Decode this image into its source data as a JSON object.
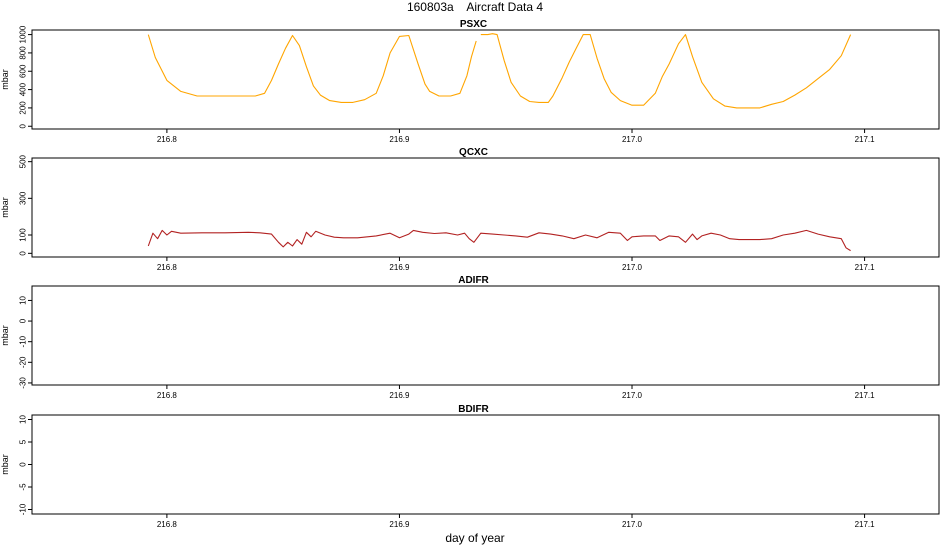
{
  "figure": {
    "title": "160803a    Aircraft Data 4",
    "xlabel": "day of year"
  },
  "chart_data": [
    {
      "type": "line",
      "title": "PSXC",
      "ylabel": "mbar",
      "xlim": [
        216.742,
        217.132
      ],
      "ylim": [
        -30,
        1050
      ],
      "xticks": [
        216.8,
        216.9,
        217.0,
        217.1
      ],
      "xtick_labels": [
        "216.8",
        "216.9",
        "217.0",
        "217.1"
      ],
      "yticks": [
        0,
        200,
        400,
        600,
        800,
        1000
      ],
      "ytick_labels": [
        "0",
        "200",
        "400",
        "600",
        "800",
        "1000"
      ],
      "color": "#ffa500",
      "series": [
        {
          "x": [
            216.792,
            216.795,
            216.8,
            216.806,
            216.813,
            216.82,
            216.83,
            216.838,
            216.842,
            216.845,
            216.848,
            216.851,
            216.854,
            216.857,
            216.86,
            216.863,
            216.866,
            216.87,
            216.875,
            216.88,
            216.885,
            216.89,
            216.893,
            216.896,
            216.9,
            216.904,
            216.908,
            216.911,
            216.913,
            216.917,
            216.922,
            216.926,
            216.929,
            216.931,
            216.933
          ],
          "y": [
            1000,
            750,
            500,
            380,
            330,
            330,
            330,
            330,
            360,
            500,
            680,
            850,
            990,
            880,
            650,
            440,
            340,
            280,
            260,
            260,
            290,
            360,
            550,
            800,
            980,
            990,
            680,
            460,
            380,
            330,
            330,
            360,
            550,
            760,
            930
          ]
        },
        {
          "x": [
            216.935,
            216.938,
            216.94,
            216.942,
            216.945,
            216.948,
            216.952,
            216.956,
            216.96,
            216.964,
            216.966,
            216.97,
            216.973,
            216.976,
            216.979,
            216.982,
            216.985,
            216.988,
            216.991,
            216.995,
            217.0,
            217.005,
            217.01,
            217.013,
            217.016,
            217.02,
            217.023,
            217.026,
            217.03,
            217.035,
            217.04,
            217.045,
            217.05,
            217.055,
            217.06,
            217.065,
            217.07,
            217.075,
            217.08,
            217.085,
            217.09,
            217.094
          ],
          "y": [
            1000,
            1000,
            1010,
            1000,
            720,
            480,
            330,
            270,
            260,
            260,
            330,
            530,
            700,
            850,
            1000,
            1000,
            740,
            520,
            370,
            280,
            230,
            230,
            360,
            540,
            680,
            900,
            1000,
            760,
            480,
            300,
            220,
            200,
            200,
            200,
            240,
            270,
            340,
            420,
            520,
            620,
            770,
            1000
          ]
        }
      ]
    },
    {
      "type": "line",
      "title": "QCXC",
      "ylabel": "mbar",
      "xlim": [
        216.742,
        217.132
      ],
      "ylim": [
        -20,
        520
      ],
      "xticks": [
        216.8,
        216.9,
        217.0,
        217.1
      ],
      "xtick_labels": [
        "216.8",
        "216.9",
        "217.0",
        "217.1"
      ],
      "yticks": [
        0,
        100,
        300,
        500
      ],
      "ytick_labels": [
        "0",
        "100",
        "300",
        "500"
      ],
      "color": "#b22222",
      "series": [
        {
          "x": [
            216.792,
            216.794,
            216.796,
            216.798,
            216.8,
            216.802,
            216.806,
            216.815,
            216.825,
            216.835,
            216.84,
            216.845,
            216.848,
            216.85,
            216.852,
            216.854,
            216.856,
            216.858,
            216.86,
            216.862,
            216.864,
            216.868,
            216.872,
            216.876,
            216.882,
            216.89,
            216.896,
            216.9,
            216.904,
            216.906,
            216.91,
            216.915,
            216.92,
            216.925,
            216.928,
            216.93,
            216.932,
            216.935,
            216.94,
            216.945,
            216.95,
            216.955,
            216.96,
            216.965,
            216.97,
            216.975,
            216.98,
            216.985,
            216.99,
            216.995,
            216.998,
            217.0,
            217.005,
            217.01,
            217.012,
            217.016,
            217.02,
            217.023,
            217.026,
            217.028,
            217.03,
            217.034,
            217.038,
            217.042,
            217.046,
            217.05,
            217.055,
            217.06,
            217.065,
            217.07,
            217.075,
            217.08,
            217.085,
            217.09,
            217.092,
            217.094
          ],
          "y": [
            40,
            110,
            80,
            125,
            100,
            120,
            110,
            112,
            112,
            115,
            112,
            105,
            60,
            35,
            60,
            40,
            75,
            50,
            115,
            90,
            120,
            100,
            88,
            85,
            85,
            95,
            110,
            85,
            105,
            125,
            115,
            108,
            112,
            100,
            110,
            80,
            60,
            110,
            105,
            100,
            95,
            88,
            112,
            105,
            95,
            80,
            100,
            85,
            115,
            110,
            70,
            90,
            95,
            95,
            70,
            95,
            90,
            60,
            105,
            75,
            95,
            110,
            100,
            80,
            75,
            75,
            75,
            80,
            100,
            110,
            125,
            105,
            90,
            80,
            30,
            15
          ]
        }
      ]
    },
    {
      "type": "line",
      "title": "ADIFR",
      "ylabel": "mbar",
      "xlim": [
        216.742,
        217.132
      ],
      "ylim": [
        -31,
        17
      ],
      "xticks": [
        216.8,
        216.9,
        217.0,
        217.1
      ],
      "xtick_labels": [
        "216.8",
        "216.9",
        "217.0",
        "217.1"
      ],
      "yticks": [
        -30,
        -20,
        -10,
        0,
        10
      ],
      "ytick_labels": [
        "-30",
        "-20",
        "-10",
        "0",
        "10"
      ],
      "color": "#000000",
      "series": []
    },
    {
      "type": "line",
      "title": "BDIFR",
      "ylabel": "mbar",
      "xlim": [
        216.742,
        217.132
      ],
      "ylim": [
        -11,
        11
      ],
      "xticks": [
        216.8,
        216.9,
        217.0,
        217.1
      ],
      "xtick_labels": [
        "216.8",
        "216.9",
        "217.0",
        "217.1"
      ],
      "yticks": [
        -10,
        -5,
        0,
        5,
        10
      ],
      "ytick_labels": [
        "-10",
        "-5",
        "0",
        "5",
        "10"
      ],
      "color": "#000000",
      "series": []
    }
  ]
}
